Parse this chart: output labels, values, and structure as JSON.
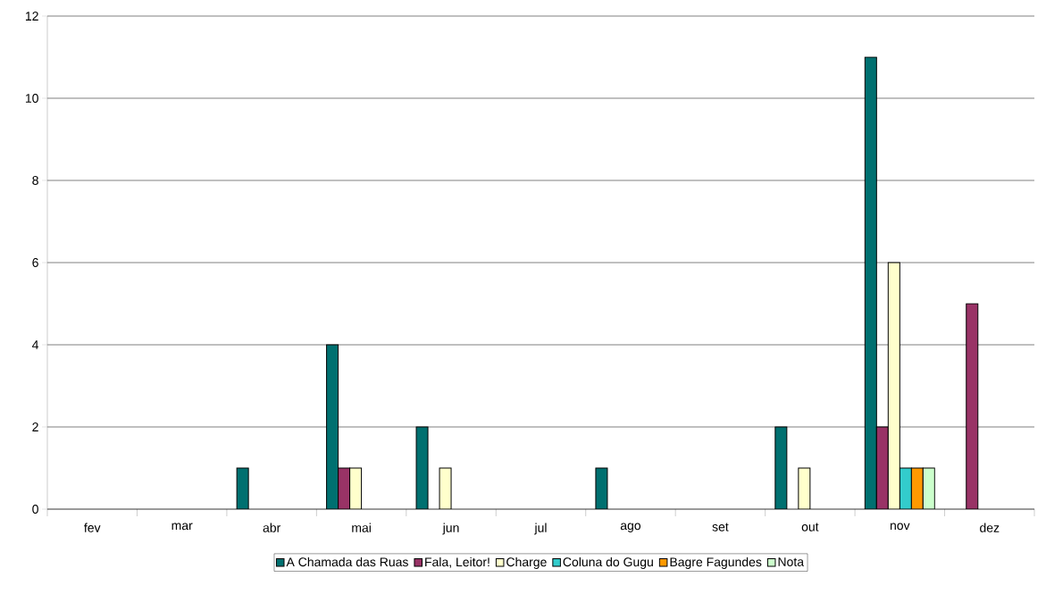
{
  "chart_data": {
    "type": "bar",
    "categories": [
      "fev",
      "mar",
      "abr",
      "mai",
      "jun",
      "jul",
      "ago",
      "set",
      "out",
      "nov",
      "dez"
    ],
    "series": [
      {
        "name": "A Chamada das Ruas",
        "color": "#007070",
        "values": [
          null,
          null,
          1,
          4,
          2,
          null,
          1,
          null,
          2,
          11,
          null
        ]
      },
      {
        "name": "Fala, Leitor!",
        "color": "#993366",
        "values": [
          null,
          null,
          null,
          1,
          null,
          null,
          null,
          null,
          null,
          2,
          5
        ]
      },
      {
        "name": "Charge",
        "color": "#ffffcc",
        "values": [
          null,
          null,
          null,
          1,
          1,
          null,
          null,
          null,
          1,
          6,
          null
        ]
      },
      {
        "name": "Coluna do Gugu",
        "color": "#33cccc",
        "values": [
          null,
          null,
          null,
          null,
          null,
          null,
          null,
          null,
          null,
          1,
          null
        ]
      },
      {
        "name": "Bagre Fagundes",
        "color": "#ff9900",
        "values": [
          null,
          null,
          null,
          null,
          null,
          null,
          null,
          null,
          null,
          1,
          null
        ]
      },
      {
        "name": "Nota",
        "color": "#ccffcc",
        "values": [
          null,
          null,
          null,
          null,
          null,
          null,
          null,
          null,
          null,
          1,
          null
        ]
      }
    ],
    "ylim": [
      0,
      12
    ],
    "yticks": [
      0,
      2,
      4,
      6,
      8,
      10,
      12
    ],
    "grid": "y",
    "legend": "bottom"
  }
}
